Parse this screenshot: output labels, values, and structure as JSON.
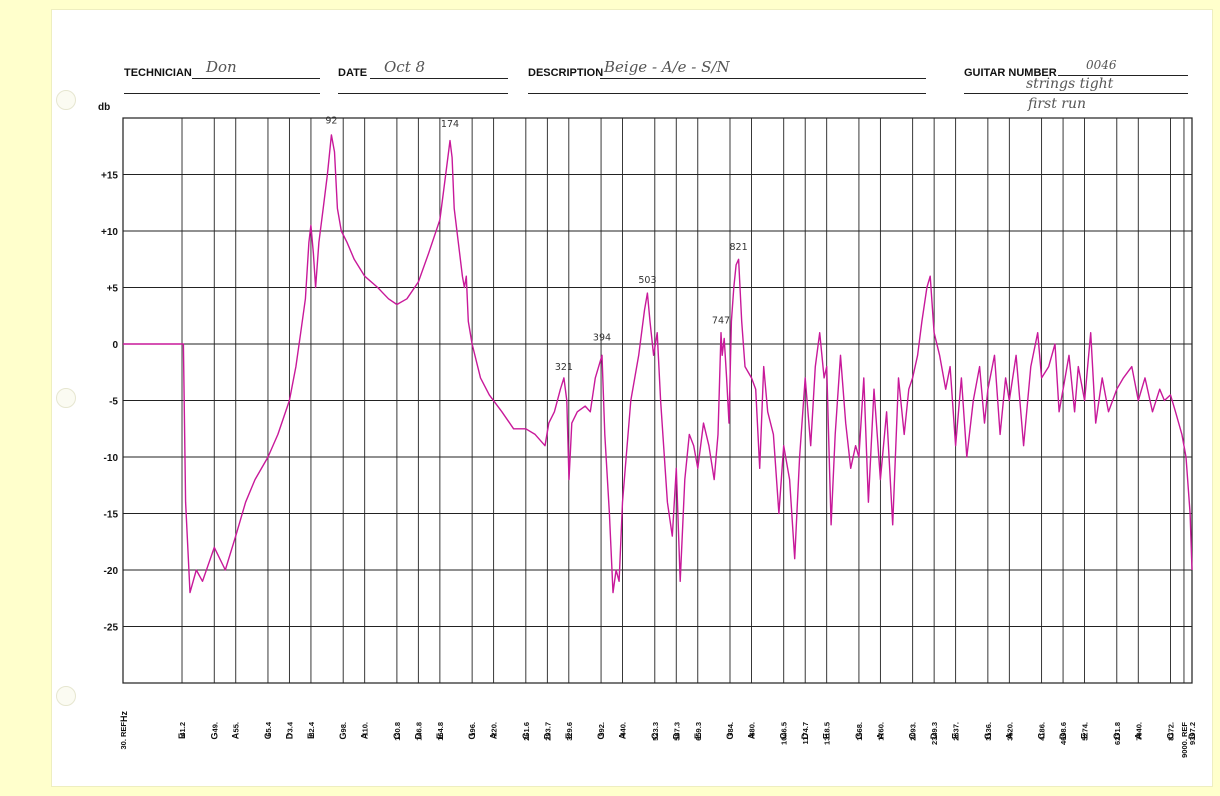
{
  "header": {
    "technician_label": "TECHNICIAN",
    "technician_value": "Don",
    "date_label": "DATE",
    "date_value": "Oct 8",
    "description_label": "DESCRIPTION",
    "description_value": "Beige - A/e - S/N",
    "guitar_number_label": "GUITAR NUMBER",
    "guitar_number_value": "0046",
    "notes_line1": "strings tight",
    "notes_line2": "first run"
  },
  "chart_data": {
    "type": "line",
    "title": "",
    "ylabel": "db",
    "xlabel": "Hz",
    "ylim": [
      -30,
      20
    ],
    "y_ticks": [
      {
        "value": 15,
        "label": "+15"
      },
      {
        "value": 10,
        "label": "+10"
      },
      {
        "value": 5,
        "label": "+5"
      },
      {
        "value": 0,
        "label": "0"
      },
      {
        "value": -5,
        "label": "-5"
      },
      {
        "value": -10,
        "label": "-10"
      },
      {
        "value": -15,
        "label": "-15"
      },
      {
        "value": -20,
        "label": "-20"
      },
      {
        "value": -25,
        "label": "-25"
      }
    ],
    "x_scale": "log",
    "xlim": [
      30,
      9397.2
    ],
    "x_ticks": [
      {
        "hz": 30,
        "freq": "30. REF",
        "note": ""
      },
      {
        "hz": 41.2,
        "freq": "41.2",
        "note": "E"
      },
      {
        "hz": 49,
        "freq": "49.",
        "note": "G"
      },
      {
        "hz": 55,
        "freq": "55.",
        "note": "A"
      },
      {
        "hz": 65.4,
        "freq": "65.4",
        "note": "C"
      },
      {
        "hz": 73.4,
        "freq": "73.4",
        "note": "D"
      },
      {
        "hz": 82.4,
        "freq": "82.4",
        "note": "E"
      },
      {
        "hz": 98,
        "freq": "98.",
        "note": "G"
      },
      {
        "hz": 110,
        "freq": "110.",
        "note": "A"
      },
      {
        "hz": 130.8,
        "freq": "130.8",
        "note": "C"
      },
      {
        "hz": 146.8,
        "freq": "146.8",
        "note": "D"
      },
      {
        "hz": 164.8,
        "freq": "164.8",
        "note": "E"
      },
      {
        "hz": 196,
        "freq": "196.",
        "note": "G"
      },
      {
        "hz": 220,
        "freq": "220.",
        "note": "A"
      },
      {
        "hz": 261.6,
        "freq": "261.6",
        "note": "C"
      },
      {
        "hz": 293.7,
        "freq": "293.7",
        "note": "D"
      },
      {
        "hz": 329.6,
        "freq": "329.6",
        "note": "E"
      },
      {
        "hz": 392,
        "freq": "392.",
        "note": "G"
      },
      {
        "hz": 440,
        "freq": "440.",
        "note": "A"
      },
      {
        "hz": 523.3,
        "freq": "523.3",
        "note": "C"
      },
      {
        "hz": 587.3,
        "freq": "587.3",
        "note": "D"
      },
      {
        "hz": 659.3,
        "freq": "659.3",
        "note": "E"
      },
      {
        "hz": 784,
        "freq": "784.",
        "note": "G"
      },
      {
        "hz": 880,
        "freq": "880.",
        "note": "A"
      },
      {
        "hz": 1046.5,
        "freq": "1046.5",
        "note": "C"
      },
      {
        "hz": 1174.7,
        "freq": "1174.7",
        "note": "D"
      },
      {
        "hz": 1318.5,
        "freq": "1318.5",
        "note": "E"
      },
      {
        "hz": 1568,
        "freq": "1568.",
        "note": "G"
      },
      {
        "hz": 1760,
        "freq": "1760.",
        "note": "A"
      },
      {
        "hz": 2093,
        "freq": "2093.",
        "note": "C"
      },
      {
        "hz": 2349.3,
        "freq": "2349.3",
        "note": "D"
      },
      {
        "hz": 2637,
        "freq": "2637.",
        "note": "E"
      },
      {
        "hz": 3136,
        "freq": "3136.",
        "note": "G"
      },
      {
        "hz": 3520,
        "freq": "3520.",
        "note": "A"
      },
      {
        "hz": 4186,
        "freq": "4186.",
        "note": "C"
      },
      {
        "hz": 4698.6,
        "freq": "4698.6",
        "note": "D"
      },
      {
        "hz": 5274,
        "freq": "5274.",
        "note": "E"
      },
      {
        "hz": 6271.8,
        "freq": "6271.8",
        "note": "G"
      },
      {
        "hz": 7040,
        "freq": "7040.",
        "note": "A"
      },
      {
        "hz": 8372,
        "freq": "8372.",
        "note": "C"
      },
      {
        "hz": 9000,
        "freq": "9000. REF",
        "note": ""
      },
      {
        "hz": 9397.2,
        "freq": "9397.2",
        "note": "D"
      }
    ],
    "series": [
      {
        "color": "#c8199a",
        "points": [
          [
            30,
            0
          ],
          [
            41.5,
            0
          ],
          [
            42,
            -14
          ],
          [
            43,
            -22
          ],
          [
            44.5,
            -20
          ],
          [
            46,
            -21
          ],
          [
            49,
            -18
          ],
          [
            52,
            -20
          ],
          [
            55,
            -17
          ],
          [
            58,
            -14
          ],
          [
            61,
            -12
          ],
          [
            65.4,
            -10
          ],
          [
            69,
            -8
          ],
          [
            73.4,
            -5
          ],
          [
            76,
            -2
          ],
          [
            78,
            1
          ],
          [
            80,
            4
          ],
          [
            81.5,
            9
          ],
          [
            82.4,
            10.5
          ],
          [
            83.5,
            8
          ],
          [
            84.5,
            5
          ],
          [
            86,
            9
          ],
          [
            88,
            12
          ],
          [
            90,
            15
          ],
          [
            92,
            18.5
          ],
          [
            93.5,
            17
          ],
          [
            95,
            12
          ],
          [
            97,
            10
          ],
          [
            100,
            9
          ],
          [
            104,
            7.5
          ],
          [
            110,
            6
          ],
          [
            118,
            5
          ],
          [
            125,
            4
          ],
          [
            130.8,
            3.5
          ],
          [
            138,
            4
          ],
          [
            146.8,
            5.5
          ],
          [
            155,
            8
          ],
          [
            164.8,
            11
          ],
          [
            170,
            15
          ],
          [
            174,
            18
          ],
          [
            176,
            16.5
          ],
          [
            178,
            12
          ],
          [
            182,
            9
          ],
          [
            186,
            6
          ],
          [
            188,
            5
          ],
          [
            190,
            6
          ],
          [
            192,
            2
          ],
          [
            196,
            0
          ],
          [
            205,
            -3
          ],
          [
            215,
            -4.5
          ],
          [
            230,
            -6
          ],
          [
            245,
            -7.5
          ],
          [
            261.6,
            -7.5
          ],
          [
            275,
            -8
          ],
          [
            290,
            -9
          ],
          [
            296,
            -7
          ],
          [
            305,
            -6
          ],
          [
            315,
            -4
          ],
          [
            321,
            -3
          ],
          [
            326,
            -5
          ],
          [
            330,
            -12
          ],
          [
            335,
            -7
          ],
          [
            345,
            -6
          ],
          [
            360,
            -5.5
          ],
          [
            370,
            -6
          ],
          [
            380,
            -3
          ],
          [
            394,
            -1
          ],
          [
            400,
            -8
          ],
          [
            410,
            -15
          ],
          [
            418,
            -22
          ],
          [
            425,
            -20
          ],
          [
            432,
            -21
          ],
          [
            440,
            -14
          ],
          [
            460,
            -5
          ],
          [
            480,
            -1
          ],
          [
            495,
            3
          ],
          [
            503,
            4.5
          ],
          [
            510,
            2
          ],
          [
            520,
            -1
          ],
          [
            530,
            1
          ],
          [
            540,
            -5
          ],
          [
            560,
            -14
          ],
          [
            575,
            -17
          ],
          [
            587.3,
            -11
          ],
          [
            600,
            -21
          ],
          [
            615,
            -12
          ],
          [
            630,
            -8
          ],
          [
            645,
            -9
          ],
          [
            659.3,
            -11
          ],
          [
            680,
            -7
          ],
          [
            700,
            -9
          ],
          [
            720,
            -12
          ],
          [
            735,
            -8
          ],
          [
            747,
            1
          ],
          [
            752,
            -1
          ],
          [
            760,
            0.5
          ],
          [
            770,
            -3
          ],
          [
            780,
            -7
          ],
          [
            790,
            2
          ],
          [
            800,
            5
          ],
          [
            810,
            7
          ],
          [
            821,
            7.5
          ],
          [
            835,
            2
          ],
          [
            850,
            -2
          ],
          [
            880,
            -3
          ],
          [
            900,
            -4
          ],
          [
            920,
            -11
          ],
          [
            940,
            -2
          ],
          [
            960,
            -6
          ],
          [
            990,
            -8
          ],
          [
            1020,
            -15
          ],
          [
            1046.5,
            -9
          ],
          [
            1080,
            -12
          ],
          [
            1110,
            -19
          ],
          [
            1140,
            -10
          ],
          [
            1174.7,
            -3
          ],
          [
            1210,
            -9
          ],
          [
            1240,
            -2
          ],
          [
            1270,
            1
          ],
          [
            1300,
            -3
          ],
          [
            1318.5,
            -2
          ],
          [
            1350,
            -16
          ],
          [
            1380,
            -8
          ],
          [
            1420,
            -1
          ],
          [
            1460,
            -7
          ],
          [
            1500,
            -11
          ],
          [
            1540,
            -9
          ],
          [
            1568,
            -10
          ],
          [
            1610,
            -3
          ],
          [
            1650,
            -14
          ],
          [
            1700,
            -4
          ],
          [
            1760,
            -12
          ],
          [
            1820,
            -6
          ],
          [
            1880,
            -16
          ],
          [
            1940,
            -3
          ],
          [
            2000,
            -8
          ],
          [
            2050,
            -4
          ],
          [
            2093,
            -3
          ],
          [
            2150,
            -1
          ],
          [
            2200,
            2
          ],
          [
            2260,
            5
          ],
          [
            2300,
            6
          ],
          [
            2349.3,
            1
          ],
          [
            2420,
            -1
          ],
          [
            2500,
            -4
          ],
          [
            2560,
            -2
          ],
          [
            2637,
            -9
          ],
          [
            2720,
            -3
          ],
          [
            2800,
            -10
          ],
          [
            2900,
            -5
          ],
          [
            3000,
            -2
          ],
          [
            3080,
            -7
          ],
          [
            3136,
            -4
          ],
          [
            3250,
            -1
          ],
          [
            3350,
            -8
          ],
          [
            3450,
            -3
          ],
          [
            3520,
            -5
          ],
          [
            3650,
            -1
          ],
          [
            3800,
            -9
          ],
          [
            3950,
            -2
          ],
          [
            4100,
            1
          ],
          [
            4186,
            -3
          ],
          [
            4350,
            -2
          ],
          [
            4500,
            0
          ],
          [
            4600,
            -6
          ],
          [
            4698.6,
            -4
          ],
          [
            4850,
            -1
          ],
          [
            5000,
            -6
          ],
          [
            5100,
            -2
          ],
          [
            5274,
            -5
          ],
          [
            5450,
            1
          ],
          [
            5600,
            -7
          ],
          [
            5800,
            -3
          ],
          [
            6000,
            -6
          ],
          [
            6271.8,
            -4
          ],
          [
            6500,
            -3
          ],
          [
            6800,
            -2
          ],
          [
            7040,
            -5
          ],
          [
            7300,
            -3
          ],
          [
            7600,
            -6
          ],
          [
            7900,
            -4
          ],
          [
            8100,
            -5
          ],
          [
            8372,
            -4.5
          ],
          [
            8600,
            -6
          ],
          [
            8900,
            -8
          ],
          [
            9100,
            -10
          ],
          [
            9300,
            -15
          ],
          [
            9397.2,
            -20
          ]
        ]
      }
    ],
    "annotations": [
      {
        "text": "92",
        "hz": 92,
        "db": 19.5
      },
      {
        "text": "174",
        "hz": 174,
        "db": 19.2
      },
      {
        "text": "321",
        "hz": 321,
        "db": -2.3
      },
      {
        "text": "394",
        "hz": 394,
        "db": 0.3
      },
      {
        "text": "503",
        "hz": 503,
        "db": 5.4
      },
      {
        "text": "747",
        "hz": 747,
        "db": 1.8
      },
      {
        "text": "821",
        "hz": 821,
        "db": 8.3
      }
    ],
    "grid": true
  }
}
